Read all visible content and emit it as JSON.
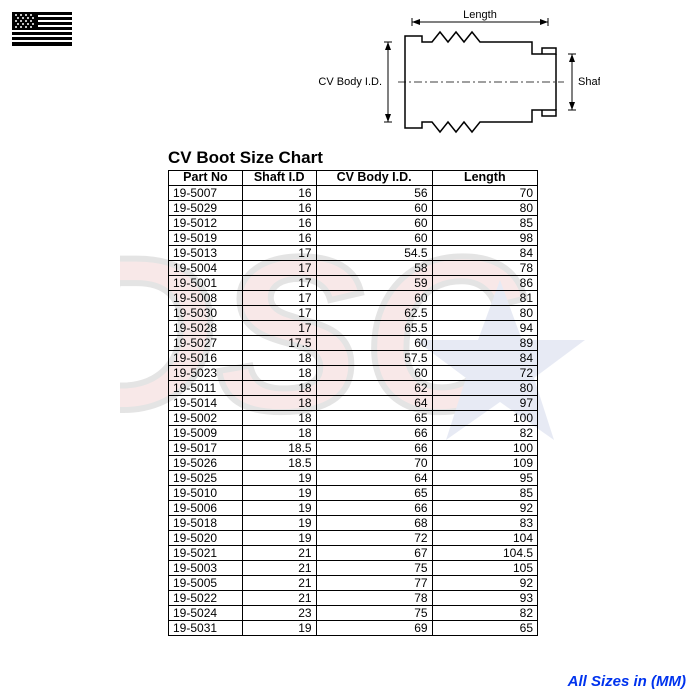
{
  "title": "CV Boot Size Chart",
  "footer": "All Sizes in (MM)",
  "diagram_labels": {
    "length": "Length",
    "body": "CV Body I.D.",
    "shaft": "Shaft I.D."
  },
  "columns": [
    "Part No",
    "Shaft I.D",
    "CV Body I.D.",
    "Length"
  ],
  "rows": [
    [
      "19-5007",
      "16",
      "56",
      "70"
    ],
    [
      "19-5029",
      "16",
      "60",
      "80"
    ],
    [
      "19-5012",
      "16",
      "60",
      "85"
    ],
    [
      "19-5019",
      "16",
      "60",
      "98"
    ],
    [
      "19-5013",
      "17",
      "54.5",
      "84"
    ],
    [
      "19-5004",
      "17",
      "58",
      "78"
    ],
    [
      "19-5001",
      "17",
      "59",
      "86"
    ],
    [
      "19-5008",
      "17",
      "60",
      "81"
    ],
    [
      "19-5030",
      "17",
      "62.5",
      "80"
    ],
    [
      "19-5028",
      "17",
      "65.5",
      "94"
    ],
    [
      "19-5027",
      "17.5",
      "60",
      "89"
    ],
    [
      "19-5016",
      "18",
      "57.5",
      "84"
    ],
    [
      "19-5023",
      "18",
      "60",
      "72"
    ],
    [
      "19-5011",
      "18",
      "62",
      "80"
    ],
    [
      "19-5014",
      "18",
      "64",
      "97"
    ],
    [
      "19-5002",
      "18",
      "65",
      "100"
    ],
    [
      "19-5009",
      "18",
      "66",
      "82"
    ],
    [
      "19-5017",
      "18.5",
      "66",
      "100"
    ],
    [
      "19-5026",
      "18.5",
      "70",
      "109"
    ],
    [
      "19-5025",
      "19",
      "64",
      "95"
    ],
    [
      "19-5010",
      "19",
      "65",
      "85"
    ],
    [
      "19-5006",
      "19",
      "66",
      "92"
    ],
    [
      "19-5018",
      "19",
      "68",
      "83"
    ],
    [
      "19-5020",
      "19",
      "72",
      "104"
    ],
    [
      "19-5021",
      "21",
      "67",
      "104.5"
    ],
    [
      "19-5003",
      "21",
      "75",
      "105"
    ],
    [
      "19-5005",
      "21",
      "77",
      "92"
    ],
    [
      "19-5022",
      "21",
      "78",
      "93"
    ],
    [
      "19-5024",
      "23",
      "75",
      "82"
    ],
    [
      "19-5031",
      "19",
      "69",
      "65"
    ]
  ],
  "watermark": {
    "letters_fill": "#c62828",
    "letters_stroke": "#000000",
    "star_fill": "#1e3fa0"
  }
}
